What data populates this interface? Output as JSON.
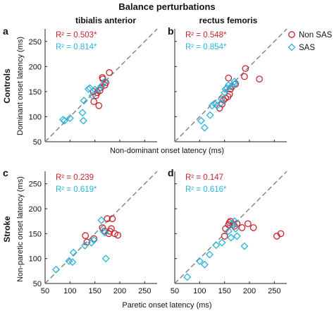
{
  "figure": {
    "title": "Balance perturbations",
    "col_titles": [
      "tibialis anterior",
      "rectus femoris"
    ],
    "row_labels": [
      "Controls",
      "Stroke"
    ],
    "ylabels": [
      "Dominant onset latency (ms)",
      "Non-paretic onset latency (ms)"
    ],
    "xlabels": [
      "Non-dominant onset latency (ms)",
      "Paretic onset latency (ms)"
    ],
    "panel_letters": [
      "a",
      "b",
      "c",
      "d"
    ],
    "legend": {
      "non_sas": "Non SAS",
      "sas": "SAS",
      "position": "top-right of panel b"
    },
    "colors": {
      "non_sas": "#c8232c",
      "sas": "#2bb3d9",
      "identity_line": "#808080"
    },
    "identity_line": "dashed y = x"
  },
  "chart_data": [
    {
      "type": "scatter",
      "panel": "a",
      "muscle": "tibialis anterior",
      "group": "Controls",
      "xlim": [
        50,
        275
      ],
      "ylim": [
        50,
        275
      ],
      "xticks": [],
      "yticks": [
        50,
        100,
        150,
        200,
        250
      ],
      "r2": {
        "non_sas": "R² = 0.503*",
        "sas": "R² = 0.814*"
      },
      "series": [
        {
          "name": "Non SAS",
          "marker": "circle",
          "x": [
            158,
            148,
            152,
            147,
            155,
            160,
            162,
            170,
            172,
            166,
            165,
            179
          ],
          "y": [
            122,
            130,
            142,
            150,
            148,
            152,
            158,
            163,
            168,
            175,
            178,
            188
          ]
        },
        {
          "name": "SAS",
          "marker": "diamond",
          "x": [
            86,
            89,
            100,
            125,
            127,
            128,
            137,
            140,
            145,
            150,
            158,
            165,
            170
          ],
          "y": [
            94,
            92,
            97,
            108,
            92,
            132,
            155,
            157,
            142,
            154,
            155,
            163,
            170
          ]
        }
      ]
    },
    {
      "type": "scatter",
      "panel": "b",
      "muscle": "rectus femoris",
      "group": "Controls",
      "xlim": [
        50,
        275
      ],
      "ylim": [
        50,
        275
      ],
      "xticks": [],
      "yticks": [],
      "r2": {
        "non_sas": "R² = 0.548*",
        "sas": "R² = 0.854*"
      },
      "series": [
        {
          "name": "Non SAS",
          "marker": "circle",
          "x": [
            140,
            145,
            148,
            152,
            157,
            160,
            158,
            162,
            165,
            172,
            190,
            192,
            220
          ],
          "y": [
            117,
            125,
            133,
            137,
            140,
            145,
            177,
            155,
            160,
            165,
            180,
            196,
            175
          ]
        },
        {
          "name": "SAS",
          "marker": "diamond",
          "x": [
            103,
            110,
            121,
            125,
            130,
            135,
            143,
            144,
            150,
            152,
            155,
            158,
            165,
            170,
            170
          ],
          "y": [
            92,
            78,
            103,
            122,
            126,
            122,
            127,
            135,
            148,
            155,
            157,
            163,
            162,
            165,
            170
          ]
        }
      ]
    },
    {
      "type": "scatter",
      "panel": "c",
      "muscle": "tibialis anterior",
      "group": "Stroke",
      "xlim": [
        50,
        275
      ],
      "ylim": [
        50,
        275
      ],
      "xticks": [
        50,
        100,
        150,
        200,
        250
      ],
      "yticks": [
        50,
        100,
        150,
        200,
        250
      ],
      "r2": {
        "non_sas": "R² = 0.239",
        "sas": "R² = 0.619*"
      },
      "series": [
        {
          "name": "Non SAS",
          "marker": "circle",
          "x": [
            131,
            134,
            148,
            165,
            170,
            175,
            178,
            180,
            183,
            185,
            190,
            196
          ],
          "y": [
            146,
            133,
            140,
            162,
            155,
            180,
            150,
            155,
            160,
            180,
            150,
            147
          ]
        },
        {
          "name": "SAS",
          "marker": "diamond",
          "x": [
            72,
            98,
            105,
            107,
            130,
            143,
            148,
            163,
            167,
            172,
            170
          ],
          "y": [
            78,
            95,
            93,
            112,
            126,
            132,
            137,
            177,
            155,
            100,
            152
          ]
        }
      ]
    },
    {
      "type": "scatter",
      "panel": "d",
      "muscle": "rectus femoris",
      "group": "Stroke",
      "xlim": [
        50,
        275
      ],
      "ylim": [
        50,
        275
      ],
      "xticks": [
        50,
        100,
        150,
        200,
        250
      ],
      "yticks": [],
      "r2": {
        "non_sas": "R² = 0.147",
        "sas": "R² = 0.616*"
      },
      "series": [
        {
          "name": "Non SAS",
          "marker": "circle",
          "x": [
            150,
            152,
            158,
            160,
            162,
            167,
            170,
            175,
            185,
            197,
            208,
            255,
            263
          ],
          "y": [
            145,
            160,
            168,
            172,
            175,
            168,
            165,
            170,
            162,
            170,
            162,
            145,
            150
          ]
        },
        {
          "name": "SAS",
          "marker": "diamond",
          "x": [
            75,
            100,
            110,
            120,
            133,
            145,
            158,
            163,
            165,
            170,
            172,
            175,
            190
          ],
          "y": [
            63,
            95,
            88,
            108,
            127,
            132,
            155,
            142,
            170,
            175,
            160,
            145,
            125
          ]
        }
      ]
    }
  ]
}
